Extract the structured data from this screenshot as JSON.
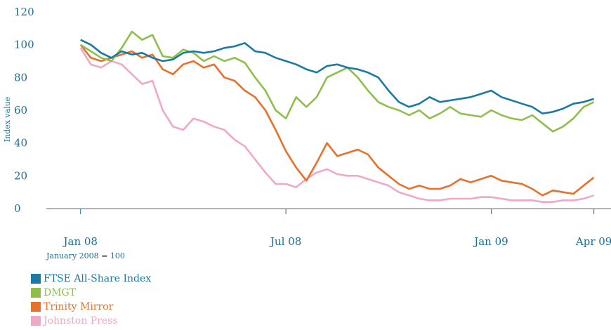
{
  "chart_data": {
    "type": "line",
    "ylabel": "Index value",
    "note": "January 2008 = 100",
    "ylim": [
      0,
      120
    ],
    "yticks": [
      0,
      20,
      40,
      60,
      80,
      100,
      120
    ],
    "xlim": [
      -1,
      15.5
    ],
    "xticks": [
      {
        "label": "Jan 08",
        "x": 0
      },
      {
        "label": "Jul 08",
        "x": 6
      },
      {
        "label": "Jan 09",
        "x": 12
      },
      {
        "label": "Apr 09",
        "x": 15
      }
    ],
    "series": [
      {
        "name": "FTSE All-Share Index",
        "color": "#1a7aa3",
        "points": [
          [
            0,
            103
          ],
          [
            0.3,
            100
          ],
          [
            0.6,
            95
          ],
          [
            0.9,
            92
          ],
          [
            1.2,
            96
          ],
          [
            1.5,
            94
          ],
          [
            1.8,
            95
          ],
          [
            2.1,
            92
          ],
          [
            2.4,
            90
          ],
          [
            2.7,
            91
          ],
          [
            3.0,
            95
          ],
          [
            3.3,
            96
          ],
          [
            3.6,
            95
          ],
          [
            3.9,
            96
          ],
          [
            4.2,
            98
          ],
          [
            4.5,
            99
          ],
          [
            4.8,
            101
          ],
          [
            5.1,
            96
          ],
          [
            5.4,
            95
          ],
          [
            5.7,
            92
          ],
          [
            6.0,
            90
          ],
          [
            6.3,
            88
          ],
          [
            6.6,
            85
          ],
          [
            6.9,
            83
          ],
          [
            7.2,
            87
          ],
          [
            7.5,
            88
          ],
          [
            7.8,
            86
          ],
          [
            8.1,
            85
          ],
          [
            8.4,
            83
          ],
          [
            8.7,
            80
          ],
          [
            9.0,
            72
          ],
          [
            9.3,
            65
          ],
          [
            9.6,
            62
          ],
          [
            9.9,
            64
          ],
          [
            10.2,
            68
          ],
          [
            10.5,
            65
          ],
          [
            10.8,
            66
          ],
          [
            11.1,
            67
          ],
          [
            11.4,
            68
          ],
          [
            11.7,
            70
          ],
          [
            12.0,
            72
          ],
          [
            12.3,
            68
          ],
          [
            12.6,
            66
          ],
          [
            12.9,
            64
          ],
          [
            13.2,
            62
          ],
          [
            13.5,
            58
          ],
          [
            13.8,
            59
          ],
          [
            14.1,
            61
          ],
          [
            14.4,
            64
          ],
          [
            14.7,
            65
          ],
          [
            15.0,
            67
          ]
        ]
      },
      {
        "name": "DMGT",
        "color": "#8fbf4a",
        "points": [
          [
            0,
            100
          ],
          [
            0.3,
            96
          ],
          [
            0.6,
            92
          ],
          [
            0.9,
            90
          ],
          [
            1.2,
            98
          ],
          [
            1.5,
            108
          ],
          [
            1.8,
            103
          ],
          [
            2.1,
            106
          ],
          [
            2.4,
            93
          ],
          [
            2.7,
            92
          ],
          [
            3.0,
            97
          ],
          [
            3.3,
            95
          ],
          [
            3.6,
            90
          ],
          [
            3.9,
            93
          ],
          [
            4.2,
            90
          ],
          [
            4.5,
            92
          ],
          [
            4.8,
            89
          ],
          [
            5.1,
            80
          ],
          [
            5.4,
            72
          ],
          [
            5.7,
            60
          ],
          [
            6.0,
            55
          ],
          [
            6.3,
            68
          ],
          [
            6.6,
            62
          ],
          [
            6.9,
            68
          ],
          [
            7.2,
            80
          ],
          [
            7.5,
            83
          ],
          [
            7.8,
            86
          ],
          [
            8.1,
            80
          ],
          [
            8.4,
            72
          ],
          [
            8.7,
            65
          ],
          [
            9.0,
            62
          ],
          [
            9.3,
            60
          ],
          [
            9.6,
            57
          ],
          [
            9.9,
            60
          ],
          [
            10.2,
            55
          ],
          [
            10.5,
            58
          ],
          [
            10.8,
            62
          ],
          [
            11.1,
            58
          ],
          [
            11.4,
            57
          ],
          [
            11.7,
            56
          ],
          [
            12.0,
            60
          ],
          [
            12.3,
            57
          ],
          [
            12.6,
            55
          ],
          [
            12.9,
            54
          ],
          [
            13.2,
            57
          ],
          [
            13.5,
            52
          ],
          [
            13.8,
            47
          ],
          [
            14.1,
            50
          ],
          [
            14.4,
            55
          ],
          [
            14.7,
            62
          ],
          [
            15.0,
            65
          ]
        ]
      },
      {
        "name": "Trinity Mirror",
        "color": "#e8702a",
        "points": [
          [
            0,
            100
          ],
          [
            0.3,
            92
          ],
          [
            0.6,
            90
          ],
          [
            0.9,
            92
          ],
          [
            1.2,
            94
          ],
          [
            1.5,
            96
          ],
          [
            1.8,
            92
          ],
          [
            2.1,
            94
          ],
          [
            2.4,
            85
          ],
          [
            2.7,
            82
          ],
          [
            3.0,
            88
          ],
          [
            3.3,
            90
          ],
          [
            3.6,
            86
          ],
          [
            3.9,
            88
          ],
          [
            4.2,
            80
          ],
          [
            4.5,
            78
          ],
          [
            4.8,
            72
          ],
          [
            5.1,
            68
          ],
          [
            5.4,
            60
          ],
          [
            5.7,
            48
          ],
          [
            6.0,
            35
          ],
          [
            6.3,
            25
          ],
          [
            6.6,
            17
          ],
          [
            6.9,
            28
          ],
          [
            7.2,
            40
          ],
          [
            7.5,
            32
          ],
          [
            7.8,
            34
          ],
          [
            8.1,
            36
          ],
          [
            8.4,
            33
          ],
          [
            8.7,
            25
          ],
          [
            9.0,
            20
          ],
          [
            9.3,
            15
          ],
          [
            9.6,
            12
          ],
          [
            9.9,
            14
          ],
          [
            10.2,
            12
          ],
          [
            10.5,
            12
          ],
          [
            10.8,
            14
          ],
          [
            11.1,
            18
          ],
          [
            11.4,
            16
          ],
          [
            11.7,
            18
          ],
          [
            12.0,
            20
          ],
          [
            12.3,
            17
          ],
          [
            12.6,
            16
          ],
          [
            12.9,
            15
          ],
          [
            13.2,
            12
          ],
          [
            13.5,
            8
          ],
          [
            13.8,
            11
          ],
          [
            14.1,
            10
          ],
          [
            14.4,
            9
          ],
          [
            14.7,
            14
          ],
          [
            15.0,
            19
          ]
        ]
      },
      {
        "name": "Johnston Press",
        "color": "#f0a8c8",
        "points": [
          [
            0,
            98
          ],
          [
            0.3,
            88
          ],
          [
            0.6,
            86
          ],
          [
            0.9,
            90
          ],
          [
            1.2,
            88
          ],
          [
            1.5,
            82
          ],
          [
            1.8,
            76
          ],
          [
            2.1,
            78
          ],
          [
            2.4,
            60
          ],
          [
            2.7,
            50
          ],
          [
            3.0,
            48
          ],
          [
            3.3,
            55
          ],
          [
            3.6,
            53
          ],
          [
            3.9,
            50
          ],
          [
            4.2,
            48
          ],
          [
            4.5,
            42
          ],
          [
            4.8,
            38
          ],
          [
            5.1,
            30
          ],
          [
            5.4,
            22
          ],
          [
            5.7,
            15
          ],
          [
            6.0,
            15
          ],
          [
            6.3,
            13
          ],
          [
            6.6,
            18
          ],
          [
            6.9,
            22
          ],
          [
            7.2,
            24
          ],
          [
            7.5,
            21
          ],
          [
            7.8,
            20
          ],
          [
            8.1,
            20
          ],
          [
            8.4,
            18
          ],
          [
            8.7,
            16
          ],
          [
            9.0,
            14
          ],
          [
            9.3,
            10
          ],
          [
            9.6,
            8
          ],
          [
            9.9,
            6
          ],
          [
            10.2,
            5
          ],
          [
            10.5,
            5
          ],
          [
            10.8,
            6
          ],
          [
            11.1,
            6
          ],
          [
            11.4,
            6
          ],
          [
            11.7,
            7
          ],
          [
            12.0,
            7
          ],
          [
            12.3,
            6
          ],
          [
            12.6,
            5
          ],
          [
            12.9,
            5
          ],
          [
            13.2,
            5
          ],
          [
            13.5,
            4
          ],
          [
            13.8,
            4
          ],
          [
            14.1,
            5
          ],
          [
            14.4,
            5
          ],
          [
            14.7,
            6
          ],
          [
            15.0,
            8
          ]
        ]
      }
    ]
  },
  "brand_color": "#1a6e95"
}
